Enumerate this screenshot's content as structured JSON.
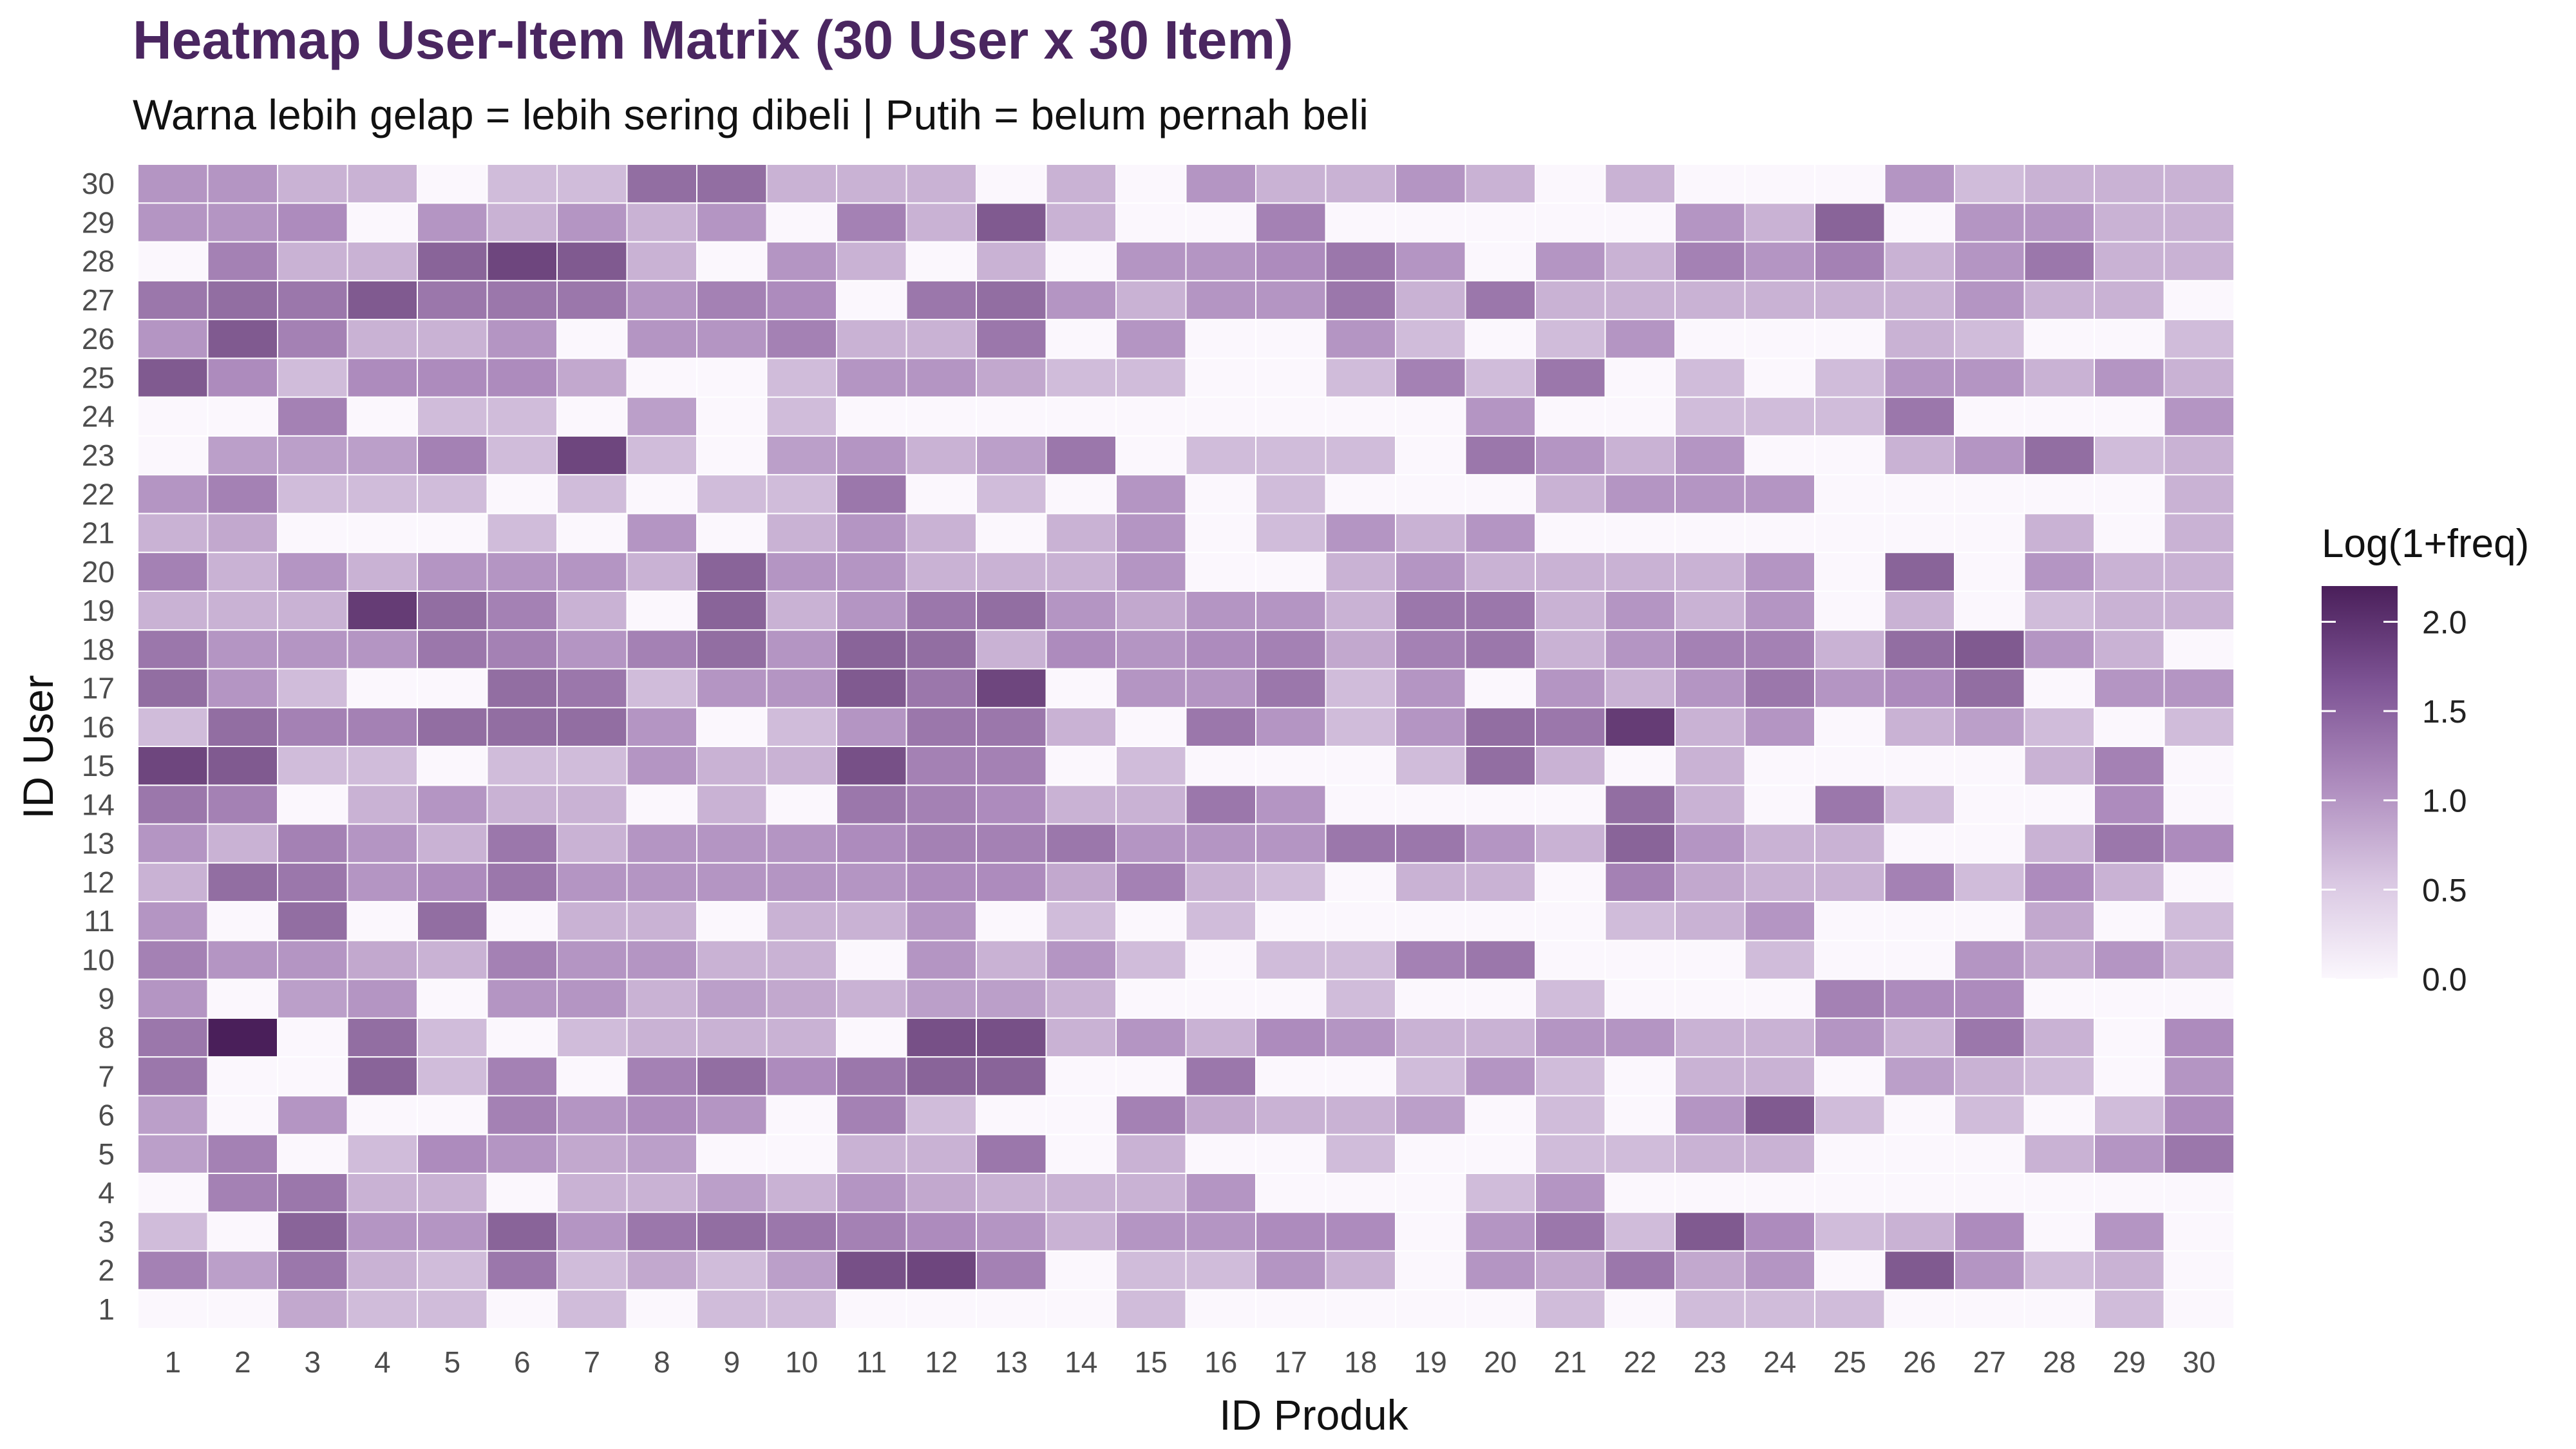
{
  "chart_data": {
    "type": "heatmap",
    "title": "Heatmap User-Item Matrix (30 User x 30 Item)",
    "subtitle": "Warna lebih gelap = lebih sering dibeli | Putih = belum pernah beli",
    "xlabel": "ID Produk",
    "ylabel": "ID User",
    "x": [
      1,
      2,
      3,
      4,
      5,
      6,
      7,
      8,
      9,
      10,
      11,
      12,
      13,
      14,
      15,
      16,
      17,
      18,
      19,
      20,
      21,
      22,
      23,
      24,
      25,
      26,
      27,
      28,
      29,
      30
    ],
    "y": [
      1,
      2,
      3,
      4,
      5,
      6,
      7,
      8,
      9,
      10,
      11,
      12,
      13,
      14,
      15,
      16,
      17,
      18,
      19,
      20,
      21,
      22,
      23,
      24,
      25,
      26,
      27,
      28,
      29,
      30
    ],
    "value_scale": "Log(1+freq)",
    "color_low": "#fbf7fd",
    "color_high": "#4a1f5a",
    "legend": {
      "title": "Log(1+freq)",
      "breaks": [
        0.0,
        0.5,
        1.0,
        1.5,
        2.0
      ],
      "labels": [
        "0.0",
        "0.5",
        "1.0",
        "1.5",
        "2.0"
      ],
      "limits": [
        0,
        2.2
      ],
      "position": "right"
    },
    "matrix": [
      [
        0.0,
        0.0,
        0.8,
        0.6,
        0.6,
        0.0,
        0.6,
        0.0,
        0.6,
        0.6,
        0.0,
        0.0,
        0.0,
        0.0,
        0.6,
        0.0,
        0.0,
        0.0,
        0.0,
        0.0,
        0.6,
        0.0,
        0.6,
        0.6,
        0.6,
        0.0,
        0.0,
        0.0,
        0.6,
        0.0
      ],
      [
        1.2,
        0.9,
        1.3,
        0.7,
        0.6,
        1.3,
        0.6,
        0.8,
        0.6,
        0.9,
        1.7,
        1.8,
        1.2,
        0.0,
        0.6,
        0.6,
        1.0,
        0.7,
        0.0,
        1.0,
        0.8,
        1.3,
        0.8,
        1.0,
        0.0,
        1.6,
        1.0,
        0.6,
        0.7,
        0.0
      ],
      [
        0.6,
        0.0,
        1.5,
        1.0,
        1.0,
        1.5,
        1.0,
        1.3,
        1.4,
        1.3,
        1.2,
        1.1,
        1.0,
        0.7,
        1.0,
        1.0,
        1.1,
        1.1,
        0.0,
        1.0,
        1.3,
        0.6,
        1.6,
        1.1,
        0.6,
        0.7,
        1.1,
        0.0,
        1.0,
        0.0
      ],
      [
        0.0,
        1.2,
        1.3,
        0.7,
        0.7,
        0.0,
        0.7,
        0.7,
        0.9,
        0.7,
        1.0,
        0.8,
        0.7,
        0.7,
        0.7,
        1.0,
        0.0,
        0.0,
        0.0,
        0.6,
        1.0,
        0.0,
        0.0,
        0.0,
        0.0,
        0.0,
        0.0,
        0.0,
        0.0,
        0.0
      ],
      [
        0.9,
        1.2,
        0.0,
        0.6,
        1.1,
        1.0,
        0.8,
        0.9,
        0.0,
        0.0,
        0.7,
        0.7,
        1.3,
        0.0,
        0.7,
        0.0,
        0.0,
        0.6,
        0.0,
        0.0,
        0.6,
        0.6,
        0.7,
        0.7,
        0.0,
        0.0,
        0.0,
        0.7,
        1.0,
        1.3
      ],
      [
        0.9,
        0.0,
        1.0,
        0.0,
        0.0,
        1.2,
        1.0,
        1.1,
        1.0,
        0.0,
        1.2,
        0.6,
        0.0,
        0.0,
        1.2,
        0.8,
        0.7,
        0.7,
        0.9,
        0.0,
        0.6,
        0.0,
        1.0,
        1.6,
        0.6,
        0.0,
        0.6,
        0.0,
        0.6,
        1.1
      ],
      [
        1.3,
        0.0,
        0.0,
        1.5,
        0.6,
        1.2,
        0.0,
        1.2,
        1.4,
        1.1,
        1.3,
        1.5,
        1.5,
        0.0,
        0.0,
        1.3,
        0.0,
        0.0,
        0.6,
        1.0,
        0.6,
        0.0,
        0.7,
        0.7,
        0.0,
        0.9,
        0.7,
        0.6,
        0.0,
        1.0
      ],
      [
        1.3,
        2.2,
        0.0,
        1.4,
        0.6,
        0.0,
        0.6,
        0.7,
        0.7,
        0.7,
        0.0,
        1.7,
        1.7,
        0.7,
        1.0,
        0.7,
        1.1,
        1.0,
        0.7,
        0.7,
        1.0,
        1.0,
        0.7,
        0.7,
        1.0,
        0.7,
        1.3,
        0.7,
        0.0,
        1.1
      ],
      [
        1.0,
        0.0,
        0.9,
        1.0,
        0.0,
        1.0,
        1.0,
        0.7,
        0.9,
        0.8,
        0.7,
        0.9,
        0.9,
        0.7,
        0.0,
        0.0,
        0.0,
        0.6,
        0.0,
        0.0,
        0.6,
        0.0,
        0.0,
        0.0,
        1.2,
        1.1,
        1.1,
        0.0,
        0.0,
        0.0
      ],
      [
        1.2,
        1.0,
        1.0,
        0.8,
        0.7,
        1.2,
        1.0,
        1.0,
        0.7,
        0.7,
        0.0,
        1.0,
        0.7,
        1.0,
        0.6,
        0.0,
        0.6,
        0.6,
        1.2,
        1.3,
        0.0,
        0.0,
        0.0,
        0.6,
        0.0,
        0.0,
        1.0,
        0.8,
        1.0,
        0.7
      ],
      [
        1.0,
        0.0,
        1.4,
        0.0,
        1.4,
        0.0,
        0.7,
        0.7,
        0.0,
        0.7,
        0.7,
        1.0,
        0.0,
        0.6,
        0.0,
        0.6,
        0.0,
        0.0,
        0.0,
        0.0,
        0.0,
        0.6,
        0.7,
        1.0,
        0.0,
        0.0,
        0.0,
        0.8,
        0.0,
        0.6
      ],
      [
        0.7,
        1.4,
        1.3,
        1.0,
        1.1,
        1.3,
        1.0,
        1.0,
        1.0,
        1.0,
        1.0,
        1.1,
        1.1,
        0.8,
        1.2,
        0.7,
        0.6,
        0.0,
        0.7,
        0.7,
        0.0,
        1.2,
        0.8,
        0.7,
        0.7,
        1.2,
        0.6,
        1.1,
        0.7,
        0.0
      ],
      [
        1.0,
        0.7,
        1.2,
        1.0,
        0.7,
        1.3,
        0.7,
        1.0,
        1.0,
        1.0,
        1.1,
        1.2,
        1.2,
        1.3,
        1.0,
        1.0,
        1.0,
        1.3,
        1.3,
        1.0,
        0.7,
        1.5,
        1.0,
        0.7,
        0.7,
        0.0,
        0.0,
        0.7,
        1.3,
        1.1
      ],
      [
        1.3,
        1.2,
        0.0,
        0.7,
        1.0,
        0.7,
        0.7,
        0.0,
        0.7,
        0.0,
        1.3,
        1.2,
        1.1,
        0.7,
        0.7,
        1.3,
        1.0,
        0.0,
        0.0,
        0.0,
        0.0,
        1.4,
        0.7,
        0.0,
        1.3,
        0.6,
        0.0,
        0.0,
        1.1,
        0.0
      ],
      [
        1.8,
        1.6,
        0.6,
        0.6,
        0.0,
        0.6,
        0.6,
        1.0,
        0.7,
        0.7,
        1.7,
        1.2,
        1.2,
        0.0,
        0.6,
        0.0,
        0.0,
        0.0,
        0.6,
        1.4,
        0.7,
        0.0,
        0.7,
        0.0,
        0.0,
        0.0,
        0.0,
        0.7,
        1.2,
        0.0
      ],
      [
        0.6,
        1.4,
        1.2,
        1.2,
        1.4,
        1.4,
        1.4,
        1.0,
        0.0,
        0.6,
        1.0,
        1.3,
        1.3,
        0.7,
        0.0,
        1.3,
        1.0,
        0.6,
        1.0,
        1.4,
        1.3,
        1.9,
        0.7,
        1.0,
        0.0,
        0.7,
        0.9,
        0.6,
        0.0,
        0.6
      ],
      [
        1.4,
        1.0,
        0.6,
        0.0,
        0.0,
        1.4,
        1.3,
        0.6,
        1.0,
        1.0,
        1.6,
        1.3,
        1.8,
        0.0,
        1.0,
        1.0,
        1.3,
        0.6,
        1.0,
        0.0,
        1.0,
        0.7,
        1.0,
        1.3,
        1.0,
        1.1,
        1.4,
        0.0,
        1.0,
        1.0
      ],
      [
        1.3,
        1.0,
        1.0,
        1.0,
        1.3,
        1.2,
        1.0,
        1.2,
        1.4,
        1.0,
        1.5,
        1.4,
        0.7,
        1.1,
        1.0,
        1.1,
        1.2,
        0.8,
        1.2,
        1.3,
        0.7,
        1.0,
        1.2,
        1.2,
        0.7,
        1.4,
        1.6,
        1.0,
        0.7,
        0.0
      ],
      [
        0.7,
        0.7,
        0.7,
        1.9,
        1.4,
        1.2,
        0.7,
        0.0,
        1.5,
        0.7,
        1.0,
        1.3,
        1.4,
        1.0,
        0.8,
        1.0,
        1.0,
        0.7,
        1.3,
        1.3,
        0.7,
        1.0,
        0.7,
        1.0,
        0.0,
        0.7,
        0.0,
        0.6,
        0.7,
        0.7
      ],
      [
        1.2,
        0.7,
        1.0,
        0.7,
        1.0,
        1.0,
        1.0,
        0.7,
        1.5,
        1.0,
        1.0,
        0.7,
        0.7,
        0.7,
        1.0,
        0.0,
        0.0,
        0.7,
        1.0,
        0.7,
        0.7,
        0.7,
        0.7,
        1.0,
        0.0,
        1.5,
        0.0,
        1.0,
        0.7,
        0.7
      ],
      [
        0.7,
        0.8,
        0.0,
        0.0,
        0.0,
        0.6,
        0.0,
        1.0,
        0.0,
        0.7,
        1.0,
        0.7,
        0.0,
        0.7,
        1.0,
        0.0,
        0.6,
        1.0,
        0.7,
        1.0,
        0.0,
        0.0,
        0.0,
        0.0,
        0.0,
        0.0,
        0.0,
        0.7,
        0.0,
        0.7
      ],
      [
        1.0,
        1.2,
        0.6,
        0.6,
        0.6,
        0.0,
        0.6,
        0.0,
        0.6,
        0.6,
        1.3,
        0.0,
        0.6,
        0.0,
        1.0,
        0.0,
        0.6,
        0.0,
        0.0,
        0.0,
        0.7,
        1.0,
        1.0,
        1.0,
        0.0,
        0.0,
        0.0,
        0.0,
        0.0,
        0.7
      ],
      [
        0.0,
        0.9,
        0.9,
        0.9,
        1.2,
        0.6,
        1.8,
        0.6,
        0.0,
        0.9,
        1.0,
        0.7,
        0.9,
        1.3,
        0.0,
        0.6,
        0.6,
        0.6,
        0.0,
        1.3,
        1.0,
        0.7,
        1.0,
        0.0,
        0.0,
        0.7,
        1.0,
        1.4,
        0.6,
        0.7
      ],
      [
        0.0,
        0.0,
        1.2,
        0.0,
        0.6,
        0.6,
        0.0,
        0.9,
        0.0,
        0.6,
        0.0,
        0.0,
        0.0,
        0.0,
        0.0,
        0.0,
        0.0,
        0.0,
        0.0,
        1.0,
        0.0,
        0.0,
        0.6,
        0.6,
        0.6,
        1.3,
        0.0,
        0.0,
        0.0,
        1.0
      ],
      [
        1.6,
        1.1,
        0.6,
        1.1,
        1.1,
        1.1,
        0.8,
        0.0,
        0.0,
        0.6,
        1.0,
        1.0,
        0.8,
        0.6,
        0.6,
        0.0,
        0.0,
        0.6,
        1.2,
        0.6,
        1.3,
        0.0,
        0.6,
        0.0,
        0.6,
        1.0,
        1.0,
        0.7,
        1.0,
        0.7
      ],
      [
        1.0,
        1.6,
        1.2,
        0.7,
        0.7,
        1.0,
        0.0,
        1.0,
        1.0,
        1.2,
        0.7,
        0.7,
        1.3,
        0.0,
        1.0,
        0.0,
        0.0,
        1.0,
        0.6,
        0.0,
        0.6,
        1.0,
        0.0,
        0.0,
        0.0,
        0.7,
        0.6,
        0.0,
        0.0,
        0.6
      ],
      [
        1.3,
        1.4,
        1.3,
        1.6,
        1.3,
        1.3,
        1.3,
        1.0,
        1.2,
        1.1,
        0.0,
        1.3,
        1.4,
        1.0,
        0.7,
        1.0,
        1.0,
        1.3,
        0.7,
        1.3,
        0.7,
        0.7,
        0.7,
        0.7,
        0.7,
        0.7,
        1.0,
        0.7,
        0.7,
        0.0
      ],
      [
        0.0,
        1.2,
        0.7,
        0.7,
        1.5,
        1.8,
        1.6,
        0.7,
        0.0,
        1.0,
        0.7,
        0.0,
        0.7,
        0.0,
        1.0,
        1.0,
        1.1,
        1.3,
        1.0,
        0.0,
        1.0,
        0.7,
        1.2,
        1.0,
        1.2,
        0.7,
        1.0,
        1.3,
        0.7,
        0.7
      ],
      [
        1.0,
        1.0,
        1.1,
        0.0,
        1.0,
        0.7,
        1.0,
        0.7,
        1.0,
        0.0,
        1.2,
        0.7,
        1.6,
        0.7,
        0.0,
        0.0,
        1.2,
        0.0,
        0.0,
        0.0,
        0.0,
        0.0,
        1.0,
        0.7,
        1.5,
        0.0,
        1.0,
        1.0,
        0.7,
        0.7
      ],
      [
        1.0,
        1.0,
        0.7,
        0.7,
        0.0,
        0.6,
        0.6,
        1.4,
        1.4,
        0.7,
        0.7,
        0.7,
        0.0,
        0.7,
        0.0,
        1.0,
        0.7,
        0.7,
        1.0,
        0.7,
        0.0,
        0.7,
        0.0,
        0.0,
        0.0,
        1.0,
        0.6,
        0.7,
        0.7,
        0.7
      ]
    ]
  }
}
